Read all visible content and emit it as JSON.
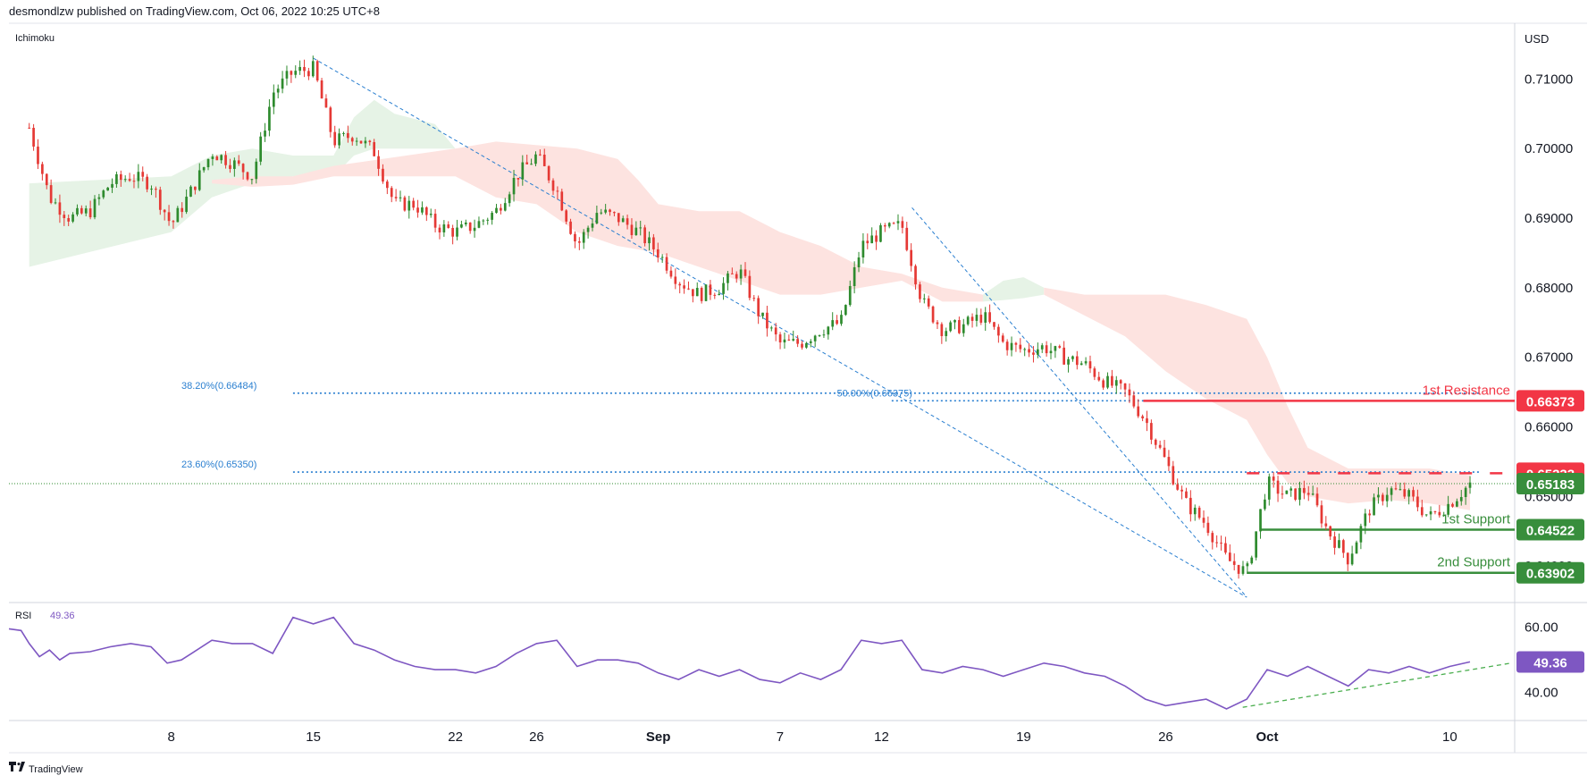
{
  "header": {
    "published": "desmondlzw published on TradingView.com, Oct 06, 2022 10:25 UTC+8",
    "indicator": "Ichimoku",
    "currency": "USD",
    "rsi_label": "RSI",
    "rsi_value": "49.36",
    "footer_brand": "TradingView"
  },
  "colors": {
    "up": "#2e8b2e",
    "down": "#e53935",
    "cloud_green": "#e6f3e6",
    "cloud_red": "#fde3e0",
    "fib": "#2a7fd0",
    "rsi": "#7e57c2",
    "resistance": "#f23645",
    "support": "#388e3c"
  },
  "chart_data": [
    {
      "type": "candlestick",
      "title": "",
      "ylim": [
        0.635,
        0.7175
      ],
      "yticks": [
        0.71,
        0.7,
        0.69,
        0.68,
        0.67,
        0.66,
        0.65,
        0.64
      ],
      "ytick_labels": [
        "0.71000",
        "0.70000",
        "0.69000",
        "0.68000",
        "0.67000",
        "0.66000",
        "0.65000",
        "0.64000"
      ],
      "xticks": [
        {
          "label": "8",
          "day": 8
        },
        {
          "label": "15",
          "day": 15
        },
        {
          "label": "22",
          "day": 22
        },
        {
          "label": "26",
          "day": 26
        },
        {
          "label": "Sep",
          "day": 32
        },
        {
          "label": "7",
          "day": 38
        },
        {
          "label": "12",
          "day": 43
        },
        {
          "label": "19",
          "day": 50
        },
        {
          "label": "26",
          "day": 57
        },
        {
          "label": "Oct",
          "day": 62
        },
        {
          "label": "10",
          "day": 71
        }
      ],
      "anchors": [
        [
          1,
          0.703
        ],
        [
          2,
          0.693
        ],
        [
          3,
          0.69
        ],
        [
          4,
          0.691
        ],
        [
          5,
          0.695
        ],
        [
          6,
          0.696
        ],
        [
          7,
          0.695
        ],
        [
          8,
          0.689
        ],
        [
          9,
          0.694
        ],
        [
          10,
          0.6995
        ],
        [
          11,
          0.698
        ],
        [
          12,
          0.696
        ],
        [
          13,
          0.708
        ],
        [
          14,
          0.711
        ],
        [
          15,
          0.7115
        ],
        [
          16,
          0.701
        ],
        [
          17,
          0.702
        ],
        [
          18,
          0.6995
        ],
        [
          19,
          0.692
        ],
        [
          20,
          0.692
        ],
        [
          21,
          0.689
        ],
        [
          22,
          0.688
        ],
        [
          23,
          0.689
        ],
        [
          24,
          0.691
        ],
        [
          25,
          0.696
        ],
        [
          26,
          0.699
        ],
        [
          27,
          0.694
        ],
        [
          28,
          0.686
        ],
        [
          29,
          0.691
        ],
        [
          30,
          0.69
        ],
        [
          31,
          0.688
        ],
        [
          32,
          0.685
        ],
        [
          33,
          0.681
        ],
        [
          34,
          0.679
        ],
        [
          35,
          0.68
        ],
        [
          36,
          0.6825
        ],
        [
          37,
          0.676
        ],
        [
          38,
          0.672
        ],
        [
          39,
          0.672
        ],
        [
          40,
          0.674
        ],
        [
          41,
          0.675
        ],
        [
          42,
          0.686
        ],
        [
          43,
          0.688
        ],
        [
          44,
          0.689
        ],
        [
          45,
          0.678
        ],
        [
          46,
          0.674
        ],
        [
          47,
          0.6745
        ],
        [
          48,
          0.676
        ],
        [
          49,
          0.672
        ],
        [
          50,
          0.671
        ],
        [
          51,
          0.6715
        ],
        [
          52,
          0.67
        ],
        [
          53,
          0.669
        ],
        [
          54,
          0.6665
        ],
        [
          55,
          0.665
        ],
        [
          56,
          0.661
        ],
        [
          57,
          0.655
        ],
        [
          58,
          0.649
        ],
        [
          59,
          0.646
        ],
        [
          60,
          0.641
        ],
        [
          61,
          0.639
        ],
        [
          62,
          0.652
        ],
        [
          63,
          0.65
        ],
        [
          64,
          0.651
        ],
        [
          65,
          0.645
        ],
        [
          66,
          0.641
        ],
        [
          67,
          0.648
        ],
        [
          68,
          0.651
        ],
        [
          69,
          0.65
        ],
        [
          70,
          0.647
        ],
        [
          71,
          0.649
        ],
        [
          72,
          0.6518
        ]
      ],
      "cloud_green_upper": [
        [
          1,
          0.695
        ],
        [
          8,
          0.696
        ],
        [
          10,
          0.699
        ],
        [
          12,
          0.7
        ],
        [
          14,
          0.699
        ],
        [
          16,
          0.699
        ],
        [
          17,
          0.7045
        ],
        [
          18,
          0.707
        ],
        [
          19,
          0.705
        ],
        [
          21,
          0.7035
        ],
        [
          22,
          0.7
        ]
      ],
      "cloud_green_lower": [
        [
          1,
          0.683
        ],
        [
          8,
          0.688
        ],
        [
          10,
          0.693
        ],
        [
          12,
          0.695
        ],
        [
          14,
          0.696
        ],
        [
          16,
          0.696
        ],
        [
          17,
          0.699
        ],
        [
          18,
          0.7
        ],
        [
          22,
          0.7
        ]
      ],
      "cloud_red_upper": [
        [
          10,
          0.6955
        ],
        [
          12,
          0.696
        ],
        [
          14,
          0.696
        ],
        [
          16,
          0.6975
        ],
        [
          22,
          0.7
        ],
        [
          24,
          0.701
        ],
        [
          28,
          0.7
        ],
        [
          30,
          0.6985
        ],
        [
          31,
          0.6955
        ],
        [
          32,
          0.692
        ],
        [
          34,
          0.691
        ],
        [
          36,
          0.691
        ],
        [
          38,
          0.688
        ],
        [
          40,
          0.686
        ],
        [
          42,
          0.683
        ],
        [
          44,
          0.682
        ],
        [
          46,
          0.68
        ],
        [
          48,
          0.679
        ]
      ],
      "cloud_red_lower": [
        [
          10,
          0.695
        ],
        [
          12,
          0.6945
        ],
        [
          14,
          0.6948
        ],
        [
          16,
          0.696
        ],
        [
          22,
          0.696
        ],
        [
          24,
          0.693
        ],
        [
          26,
          0.692
        ],
        [
          28,
          0.688
        ],
        [
          30,
          0.686
        ],
        [
          32,
          0.685
        ],
        [
          34,
          0.683
        ],
        [
          36,
          0.681
        ],
        [
          38,
          0.679
        ],
        [
          40,
          0.679
        ],
        [
          42,
          0.68
        ],
        [
          44,
          0.681
        ],
        [
          46,
          0.678
        ],
        [
          48,
          0.678
        ]
      ],
      "cloud_green2_upper": [
        [
          48,
          0.679
        ],
        [
          49,
          0.681
        ],
        [
          50,
          0.6815
        ],
        [
          51,
          0.68
        ]
      ],
      "cloud_green2_lower": [
        [
          48,
          0.678
        ],
        [
          49,
          0.6782
        ],
        [
          50,
          0.6785
        ],
        [
          51,
          0.679
        ]
      ],
      "cloud_red2_upper": [
        [
          51,
          0.68
        ],
        [
          53,
          0.679
        ],
        [
          55,
          0.679
        ],
        [
          57,
          0.679
        ],
        [
          59,
          0.6775
        ],
        [
          61,
          0.6755
        ],
        [
          62,
          0.67
        ],
        [
          63,
          0.663
        ],
        [
          64,
          0.657
        ],
        [
          66,
          0.654
        ],
        [
          68,
          0.654
        ],
        [
          70,
          0.654
        ],
        [
          72,
          0.653
        ]
      ],
      "cloud_red2_lower": [
        [
          51,
          0.679
        ],
        [
          53,
          0.676
        ],
        [
          55,
          0.673
        ],
        [
          57,
          0.668
        ],
        [
          59,
          0.664
        ],
        [
          61,
          0.661
        ],
        [
          62,
          0.656
        ],
        [
          63,
          0.652
        ],
        [
          64,
          0.65
        ],
        [
          66,
          0.649
        ],
        [
          68,
          0.6495
        ],
        [
          70,
          0.649
        ],
        [
          72,
          0.648
        ]
      ],
      "trendlines": [
        {
          "x1": 15.0,
          "y1": 0.713,
          "x2": 61.0,
          "y2": 0.6355
        },
        {
          "x1": 44.5,
          "y1": 0.6915,
          "x2": 61.0,
          "y2": 0.6355
        }
      ],
      "fib_levels": [
        {
          "label": "38.20%(0.66484)",
          "value": 0.66484,
          "from": 14.0,
          "to": 72.5,
          "label_at": 8.5
        },
        {
          "label": "50.00%(0.66375)",
          "value": 0.66375,
          "from": 43.5,
          "to": 72.5,
          "label_at": 40.8
        },
        {
          "label": "23.60%(0.65350)",
          "value": 0.6535,
          "from": 14.0,
          "to": 72.5,
          "label_at": 8.5
        }
      ],
      "levels": [
        {
          "name": "1st Resistance",
          "value": 0.66373,
          "label": "0.66373",
          "kind": "resistance",
          "from": 55.9
        },
        {
          "name": "",
          "value": 0.65333,
          "label": "0.65333",
          "kind": "resistance-dashed",
          "from": 61.0
        },
        {
          "name": "",
          "value": 0.65183,
          "label": "0.65183",
          "kind": "current"
        },
        {
          "name": "1st Support",
          "value": 0.64522,
          "label": "0.64522",
          "kind": "support",
          "from": 61.7
        },
        {
          "name": "2nd Support",
          "value": 0.63902,
          "label": "0.63902",
          "kind": "support",
          "from": 61.0
        }
      ],
      "price_axis_partial": [
        "0.65000",
        "0.64000"
      ]
    },
    {
      "type": "line",
      "title": "",
      "name": "RSI",
      "ylim": [
        32,
        67
      ],
      "yticks": [
        60,
        40
      ],
      "ytick_labels": [
        "60.00",
        "40.00"
      ],
      "current": 49.36,
      "anchors": [
        [
          0,
          59.5
        ],
        [
          0.6,
          59
        ],
        [
          1,
          55
        ],
        [
          1.5,
          51
        ],
        [
          2,
          53
        ],
        [
          2.5,
          50
        ],
        [
          3,
          52
        ],
        [
          4,
          52.5
        ],
        [
          5,
          54
        ],
        [
          6,
          55
        ],
        [
          7,
          54
        ],
        [
          7.8,
          49
        ],
        [
          8.5,
          50
        ],
        [
          9,
          52
        ],
        [
          10,
          56
        ],
        [
          11,
          55
        ],
        [
          12,
          55
        ],
        [
          13,
          52
        ],
        [
          14,
          63
        ],
        [
          15,
          61
        ],
        [
          16,
          63
        ],
        [
          17,
          55
        ],
        [
          18,
          53
        ],
        [
          19,
          50
        ],
        [
          20,
          48
        ],
        [
          21,
          47
        ],
        [
          22,
          47
        ],
        [
          23,
          46
        ],
        [
          24,
          48
        ],
        [
          25,
          52
        ],
        [
          26,
          55
        ],
        [
          27,
          56
        ],
        [
          28,
          48
        ],
        [
          29,
          50
        ],
        [
          30,
          50
        ],
        [
          31,
          49
        ],
        [
          32,
          46
        ],
        [
          33,
          44
        ],
        [
          34,
          47
        ],
        [
          35,
          45
        ],
        [
          36,
          47
        ],
        [
          37,
          44
        ],
        [
          38,
          43
        ],
        [
          39,
          46
        ],
        [
          40,
          44
        ],
        [
          41,
          47
        ],
        [
          42,
          56
        ],
        [
          43,
          55
        ],
        [
          44,
          56
        ],
        [
          45,
          47
        ],
        [
          46,
          46
        ],
        [
          47,
          48
        ],
        [
          48,
          47
        ],
        [
          49,
          45
        ],
        [
          50,
          47
        ],
        [
          51,
          49
        ],
        [
          52,
          48
        ],
        [
          53,
          46
        ],
        [
          54,
          45
        ],
        [
          55,
          42
        ],
        [
          56,
          38
        ],
        [
          57,
          36
        ],
        [
          58,
          37
        ],
        [
          59,
          38
        ],
        [
          60,
          35
        ],
        [
          61,
          38
        ],
        [
          62,
          47
        ],
        [
          63,
          45
        ],
        [
          64,
          48
        ],
        [
          65,
          45
        ],
        [
          66,
          42
        ],
        [
          67,
          47
        ],
        [
          68,
          46
        ],
        [
          69,
          48
        ],
        [
          70,
          46
        ],
        [
          71,
          48
        ],
        [
          72,
          49.4
        ]
      ],
      "trendline": {
        "x1": 60.8,
        "y1": 35.5,
        "x2": 74.0,
        "y2": 49.0
      }
    }
  ]
}
